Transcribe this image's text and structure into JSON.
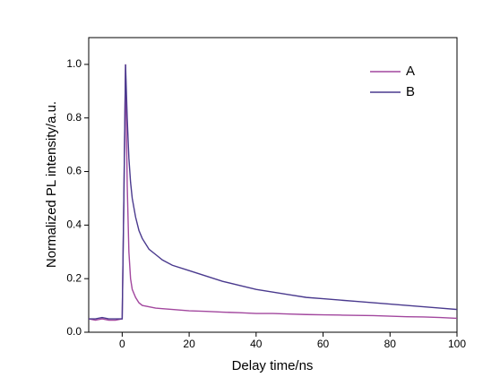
{
  "chart_data": {
    "type": "line",
    "xlabel": "Delay time/ns",
    "ylabel": "Normalized PL intensity/a.u.",
    "x": [
      -10,
      -8,
      -6,
      -4,
      -2,
      0,
      0.5,
      1,
      1.5,
      2,
      2.5,
      3,
      4,
      5,
      6,
      8,
      10,
      12,
      15,
      20,
      25,
      30,
      35,
      40,
      45,
      50,
      55,
      60,
      65,
      70,
      75,
      80,
      85,
      90,
      95,
      100
    ],
    "series": [
      {
        "name": "A",
        "color": "#a2479e",
        "values": [
          0.05,
          0.045,
          0.05,
          0.045,
          0.045,
          0.05,
          0.5,
          1.0,
          0.55,
          0.3,
          0.2,
          0.16,
          0.13,
          0.11,
          0.1,
          0.095,
          0.09,
          0.088,
          0.085,
          0.08,
          0.078,
          0.075,
          0.073,
          0.07,
          0.07,
          0.068,
          0.066,
          0.065,
          0.064,
          0.063,
          0.062,
          0.06,
          0.058,
          0.057,
          0.055,
          0.052
        ]
      },
      {
        "name": "B",
        "color": "#4a3a8e",
        "values": [
          0.05,
          0.05,
          0.055,
          0.05,
          0.05,
          0.05,
          0.5,
          1.0,
          0.8,
          0.65,
          0.56,
          0.5,
          0.43,
          0.38,
          0.35,
          0.31,
          0.29,
          0.27,
          0.25,
          0.23,
          0.21,
          0.19,
          0.175,
          0.16,
          0.15,
          0.14,
          0.13,
          0.125,
          0.12,
          0.115,
          0.11,
          0.105,
          0.1,
          0.095,
          0.09,
          0.085
        ]
      }
    ],
    "xlim": [
      -10,
      100
    ],
    "ylim": [
      0,
      1.1
    ],
    "xticks": [
      0,
      20,
      40,
      60,
      80,
      100
    ],
    "yticks": [
      {
        "value": 0,
        "label": "0.0"
      },
      0.2,
      0.4,
      0.6,
      0.8,
      {
        "value": 1,
        "label": "1.0"
      }
    ],
    "legend": "upper right"
  }
}
